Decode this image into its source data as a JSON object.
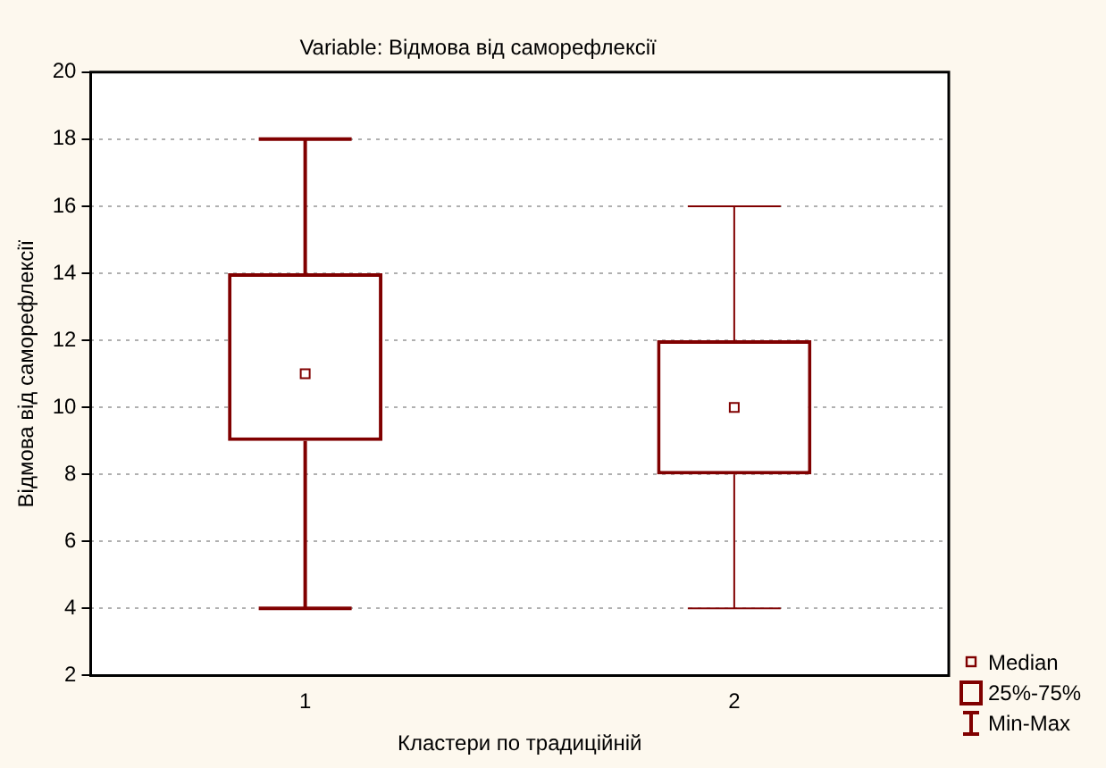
{
  "chart_data": {
    "type": "box",
    "title": "Variable: Відмова від саморефлексії",
    "xlabel": "Кластери по традиційній",
    "ylabel": "Відмова від саморефлексії",
    "categories": [
      "1",
      "2"
    ],
    "boxes": [
      {
        "low": 4,
        "q1": 9,
        "median": 11,
        "q3": 14,
        "high": 18
      },
      {
        "low": 4,
        "q1": 8,
        "median": 10,
        "q3": 12,
        "high": 16
      }
    ],
    "color": "#800000",
    "ylim": [
      2,
      20
    ],
    "yticks": [
      2,
      4,
      6,
      8,
      10,
      12,
      14,
      16,
      18,
      20
    ],
    "grid": "y",
    "marker": "square",
    "annotations": [
      "Median",
      "25%-75%",
      "Min-Max"
    ]
  }
}
